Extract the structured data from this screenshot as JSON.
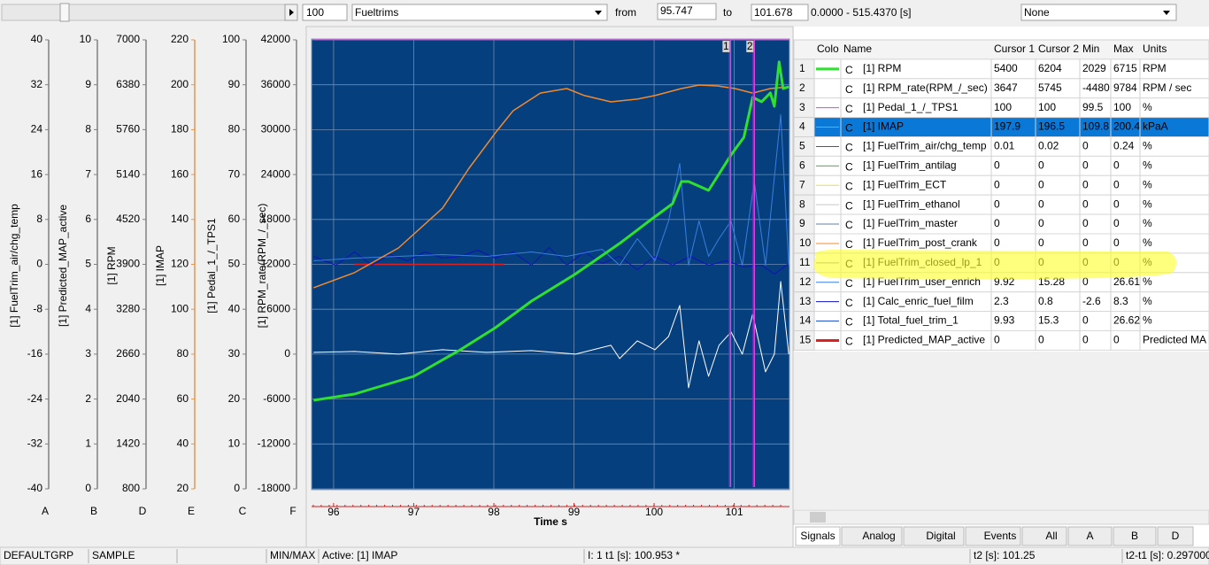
{
  "toolbar": {
    "zoom": "100",
    "group": "Fueltrims",
    "from_label": "from",
    "from": "95.747",
    "to_label": "to",
    "to": "101.678",
    "range": "0.0000 - 515.4370 [s]",
    "compare": "None"
  },
  "axes": [
    {
      "title": "[1] FuelTrim_air/chg_temp",
      "letter": "A",
      "color": "#808080",
      "ylim": [
        -40,
        40
      ],
      "ticks": [
        40,
        32,
        24,
        16,
        8,
        0,
        -8,
        -16,
        -24,
        -32,
        -40
      ]
    },
    {
      "title": "[1] Predicted_MAP_active",
      "letter": "B",
      "color": "#808080",
      "ylim": [
        0,
        10
      ],
      "ticks": [
        10,
        9,
        8,
        7,
        6,
        5,
        4,
        3,
        2,
        1,
        0
      ]
    },
    {
      "title": "[1] RPM",
      "letter": "D",
      "color": "#808080",
      "ylim": [
        800,
        7000
      ],
      "ticks": [
        7000,
        6380,
        5760,
        5140,
        4520,
        3900,
        3280,
        2660,
        2040,
        1420,
        800
      ]
    },
    {
      "title": "[1] IMAP",
      "letter": "E",
      "color": "#e8964a",
      "ylim": [
        20,
        220
      ],
      "ticks": [
        220,
        200,
        180,
        160,
        140,
        120,
        100,
        80,
        60,
        40,
        20
      ]
    },
    {
      "title": "[1] Pedal_1_/_TPS1",
      "letter": "C",
      "color": "#808080",
      "ylim": [
        0,
        100
      ],
      "ticks": [
        100,
        90,
        80,
        70,
        60,
        50,
        40,
        30,
        20,
        10,
        0
      ]
    },
    {
      "title": "[1] RPM_rate(RPM_/_sec)",
      "letter": "F",
      "color": "#808080",
      "ylim": [
        -18000,
        42000
      ],
      "ticks": [
        42000,
        36000,
        30000,
        24000,
        18000,
        12000,
        6000,
        0,
        -6000,
        -12000,
        -18000
      ]
    }
  ],
  "plot": {
    "x_label": "Time  s",
    "xlim": [
      95.747,
      101.678
    ],
    "xticks": [
      96,
      97,
      98,
      99,
      100,
      101
    ],
    "cursors": [
      {
        "label": "1",
        "x": 100.953
      },
      {
        "label": "2",
        "x": 101.25
      }
    ],
    "series": [
      {
        "axis": "C",
        "color": "#e040e0",
        "width": 1,
        "x": [
          95.75,
          101.68
        ],
        "values": [
          100,
          100
        ]
      },
      {
        "axis": "A",
        "color": "#e02020",
        "width": 1.5,
        "x": [
          96.26,
          98.13
        ],
        "values": [
          0,
          0
        ]
      },
      {
        "axis": "A",
        "color": "#1010c0",
        "width": 1,
        "x": [
          95.75,
          96.03,
          96.26,
          96.48,
          96.7,
          96.92,
          97.14,
          97.36,
          97.58,
          97.8,
          98.02,
          98.24,
          98.47,
          98.69,
          98.91,
          99.13,
          99.35,
          99.57,
          99.79,
          100.01,
          100.23,
          100.45,
          100.68,
          100.9,
          101.12,
          101.34,
          101.5,
          101.68
        ],
        "values": [
          1.42,
          -0.16,
          2.21,
          -0.16,
          1.74,
          0.63,
          2.21,
          1.1,
          1.42,
          2.52,
          1.1,
          2.21,
          -0.16,
          3.0,
          -0.16,
          2.21,
          0.16,
          1.42,
          -0.95,
          1.42,
          -0.16,
          1.42,
          -0.16,
          0.63,
          -0.47,
          -0.16,
          -1.74,
          0.16
        ]
      },
      {
        "axis": "A",
        "color": "#3a7fe0",
        "width": 1,
        "x": [
          95.75,
          96.26,
          96.81,
          97.36,
          97.91,
          98.47,
          98.91,
          99.35,
          99.57,
          99.79,
          100.01,
          100.18,
          100.32,
          100.43,
          100.56,
          100.68,
          100.81,
          100.96,
          101.1,
          101.25,
          101.39,
          101.58,
          101.68
        ],
        "values": [
          0.63,
          1.1,
          1.42,
          1.74,
          1.42,
          2.21,
          1.42,
          2.68,
          -0.16,
          4.58,
          0.63,
          7.73,
          17.99,
          -0.16,
          7.73,
          1.42,
          4.58,
          7.73,
          -0.16,
          14.83,
          -0.16,
          26.67,
          -0.16
        ]
      },
      {
        "axis": "F",
        "color": "#ffffff",
        "width": 1,
        "x": [
          95.75,
          96.26,
          96.81,
          97.36,
          97.91,
          98.47,
          99.02,
          99.46,
          99.57,
          99.79,
          100.01,
          100.18,
          100.32,
          100.43,
          100.56,
          100.68,
          100.81,
          100.96,
          101.1,
          101.23,
          101.39,
          101.5,
          101.58,
          101.68
        ],
        "values": [
          237,
          355,
          0,
          592,
          237,
          473,
          0,
          1183,
          -592,
          1775,
          592,
          2367,
          6509,
          -4497,
          1775,
          -2959,
          1183,
          2959,
          0,
          5325,
          -2367,
          0,
          9704,
          0
        ]
      },
      {
        "axis": "E",
        "color": "#f08a30",
        "width": 1.5,
        "x": [
          95.75,
          96.26,
          96.81,
          97.36,
          97.69,
          98.02,
          98.24,
          98.58,
          98.91,
          99.13,
          99.46,
          99.79,
          100.01,
          100.34,
          100.56,
          100.79,
          101.01,
          101.23,
          101.45,
          101.68
        ],
        "values": [
          109.6,
          116.3,
          127.3,
          145,
          162.8,
          178.6,
          188.4,
          196.3,
          198.3,
          195.2,
          192.4,
          193.6,
          195.2,
          198.3,
          199.9,
          199.5,
          198.3,
          196.3,
          198.3,
          199.1
        ]
      },
      {
        "axis": "D",
        "color": "#30e030",
        "width": 3,
        "x": [
          95.75,
          96.26,
          97.0,
          97.58,
          98.02,
          98.47,
          99.01,
          99.57,
          99.96,
          100.23,
          100.34,
          100.43,
          100.68,
          100.96,
          101.12,
          101.23,
          101.34,
          101.45,
          101.5,
          101.56,
          101.61,
          101.68
        ],
        "values": [
          2023,
          2108,
          2353,
          2720,
          3026,
          3393,
          3760,
          4188,
          4518,
          4738,
          5044,
          5044,
          4921,
          5411,
          5655,
          6206,
          6145,
          6267,
          6083,
          6695,
          6328,
          6352
        ]
      }
    ]
  },
  "table": {
    "columns": [
      "Colo",
      "Name",
      "Cursor 1",
      "Cursor 2",
      "Min",
      "Max",
      "Units"
    ],
    "selected": 3,
    "rows": [
      {
        "color": "#30e030",
        "thick": true,
        "cells": [
          "1",
          "[1]  RPM",
          "5400",
          "6204",
          "2029",
          "6715",
          "RPM"
        ]
      },
      {
        "cells": [
          "2",
          "[1]  RPM_rate(RPM_/_sec)",
          "3647",
          "5745",
          "-4480",
          "9784",
          "RPM / sec"
        ]
      },
      {
        "color": "#e040e0",
        "cells": [
          "3",
          "[1]  Pedal_1_/_TPS1",
          "100",
          "100",
          "99.5",
          "100",
          "%"
        ]
      },
      {
        "color": "#f08a30",
        "cells": [
          "4",
          "[1]  IMAP",
          "197.9",
          "196.5",
          "109.8",
          "200.4",
          "kPaA"
        ]
      },
      {
        "color": "#e02020",
        "cells": [
          "5",
          "[1]  FuelTrim_air/chg_temp",
          "0.01",
          "0.02",
          "0",
          "0.24",
          "%"
        ]
      },
      {
        "color": "#30c030",
        "cells": [
          "6",
          "[1]  FuelTrim_antilag",
          "0",
          "0",
          "0",
          "0",
          "%"
        ]
      },
      {
        "color": "#e8e030",
        "cells": [
          "7",
          "[1]  FuelTrim_ECT",
          "0",
          "0",
          "0",
          "0",
          "%"
        ]
      },
      {
        "color": "#c8c8c8",
        "cells": [
          "8",
          "[1]  FuelTrim_ethanol",
          "0",
          "0",
          "0",
          "0",
          "%"
        ]
      },
      {
        "color": "#6080a0",
        "cells": [
          "9",
          "[1]  FuelTrim_master",
          "0",
          "0",
          "0",
          "0",
          "%"
        ]
      },
      {
        "color": "#f08a30",
        "cells": [
          "10",
          "[1]  FuelTrim_post_crank",
          "0",
          "0",
          "0",
          "0",
          "%"
        ]
      },
      {
        "color": "#909090",
        "cells": [
          "11",
          "[1]  FuelTrim_closed_lp_1",
          "0",
          "0",
          "0",
          "0",
          "%"
        ]
      },
      {
        "color": "#3a7fe0",
        "cells": [
          "12",
          "[1]  FuelTrim_user_enrich",
          "9.92",
          "15.28",
          "0",
          "26.61",
          "%"
        ]
      },
      {
        "color": "#1010c0",
        "cells": [
          "13",
          "[1]  Calc_enric_fuel_film",
          "2.3",
          "0.8",
          "-2.6",
          "8.3",
          "%"
        ]
      },
      {
        "color": "#2050d0",
        "cells": [
          "14",
          "[1]  Total_fuel_trim_1",
          "9.93",
          "15.3",
          "0",
          "26.62",
          "%"
        ]
      },
      {
        "color": "#e02020",
        "thick": true,
        "cells": [
          "15",
          "[1]  Predicted_MAP_active",
          "0",
          "0",
          "0",
          "0",
          "Predicted MA"
        ]
      }
    ]
  },
  "tabs": [
    "Signals",
    "Analog",
    "Digital",
    "Events",
    "All",
    "A",
    "B",
    "D"
  ],
  "status": [
    "DEFAULTGRP",
    "SAMPLE",
    "MIN/MAX",
    "Active:  [1]  IMAP",
    "I: 1 t1 [s]: 100.953 *",
    "t2 [s]: 101.25",
    "t2-t1 [s]: 0.297000"
  ]
}
